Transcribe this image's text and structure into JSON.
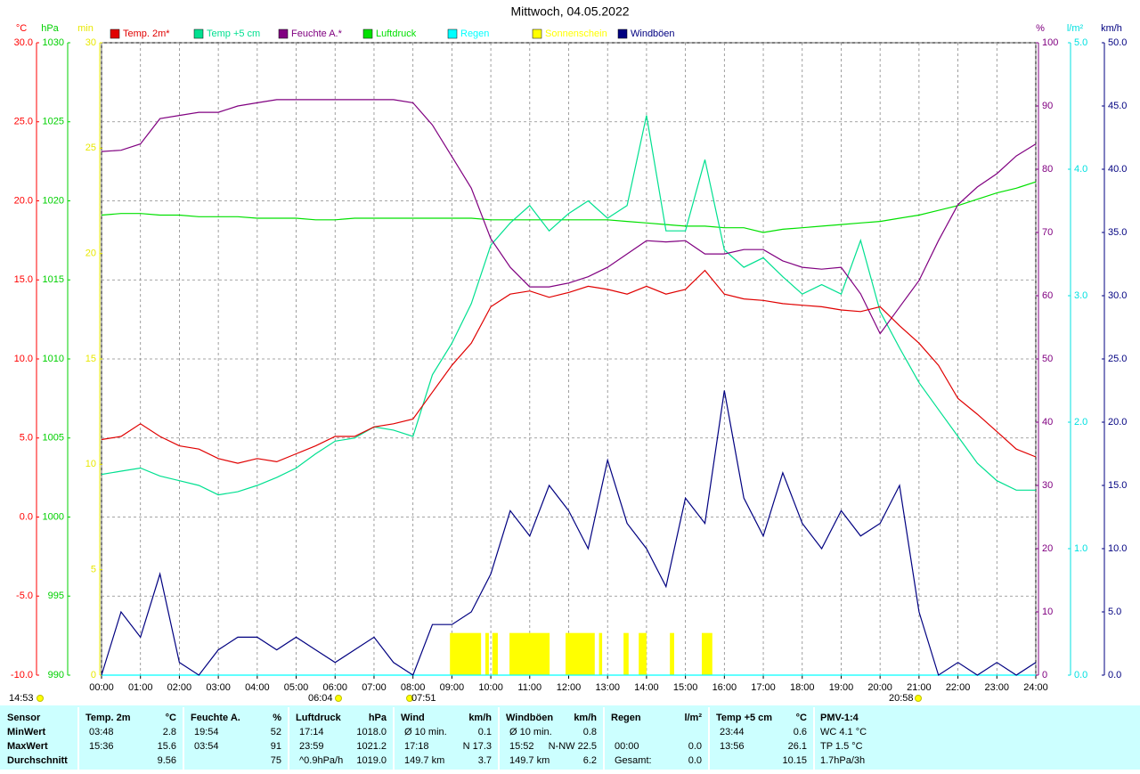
{
  "chart_data": {
    "type": "line",
    "title": "Mittwoch, 04.05.2022",
    "axes": [
      {
        "unit": "°C",
        "color": "#ff0000",
        "lim": [
          -10,
          30
        ],
        "ticks": [
          {
            "value": 30,
            "label": "30.0"
          },
          {
            "value": 25,
            "label": "25.0"
          },
          {
            "value": 20,
            "label": "20.0"
          },
          {
            "value": 15,
            "label": "15.0"
          },
          {
            "value": 10,
            "label": "10.0"
          },
          {
            "value": 5,
            "label": "5.0"
          },
          {
            "value": 0,
            "label": "0.0"
          },
          {
            "value": -5,
            "label": "-5.0"
          },
          {
            "value": -10,
            "label": "-10.0"
          }
        ]
      },
      {
        "unit": "hPa",
        "color": "#00d000",
        "lim": [
          990,
          1030
        ],
        "ticks": [
          1030,
          1025,
          1020,
          1015,
          1010,
          1005,
          1000,
          995,
          990
        ]
      },
      {
        "unit": "min",
        "color": "#e8e800",
        "lim": [
          0,
          30
        ],
        "ticks": [
          30,
          25,
          20,
          15,
          10,
          5,
          0
        ]
      },
      {
        "unit": "%",
        "color": "#800080",
        "lim": [
          0,
          100
        ],
        "ticks": [
          100,
          90,
          80,
          70,
          60,
          50,
          40,
          30,
          20,
          10,
          0
        ]
      },
      {
        "unit": "l/m²",
        "color": "#00e0e0",
        "lim": [
          0,
          5
        ],
        "ticks": [
          {
            "value": 5,
            "label": "5.0"
          },
          {
            "value": 4,
            "label": "4.0"
          },
          {
            "value": 3,
            "label": "3.0"
          },
          {
            "value": 2,
            "label": "2.0"
          },
          {
            "value": 1,
            "label": "1.0"
          },
          {
            "value": 0,
            "label": "0.0"
          }
        ]
      },
      {
        "unit": "km/h",
        "color": "#000080",
        "lim": [
          0,
          50
        ],
        "ticks": [
          {
            "value": 50,
            "label": "50.0"
          },
          {
            "value": 45,
            "label": "45.0"
          },
          {
            "value": 40,
            "label": "40.0"
          },
          {
            "value": 35,
            "label": "35.0"
          },
          {
            "value": 30,
            "label": "30.0"
          },
          {
            "value": 25,
            "label": "25.0"
          },
          {
            "value": 20,
            "label": "20.0"
          },
          {
            "value": 15,
            "label": "15.0"
          },
          {
            "value": 10,
            "label": "10.0"
          },
          {
            "value": 5,
            "label": "5.0"
          },
          {
            "value": 0,
            "label": "0.0"
          }
        ]
      }
    ],
    "xlim": [
      0,
      24
    ],
    "xticks": [
      {
        "value": 0,
        "label": "00:00"
      },
      {
        "value": 1,
        "label": "01:00"
      },
      {
        "value": 2,
        "label": "02:00"
      },
      {
        "value": 3,
        "label": "03:00"
      },
      {
        "value": 4,
        "label": "04:00"
      },
      {
        "value": 5,
        "label": "05:00"
      },
      {
        "value": 6,
        "label": "06:00"
      },
      {
        "value": 7,
        "label": "07:00"
      },
      {
        "value": 8,
        "label": "08:00"
      },
      {
        "value": 9,
        "label": "09:00"
      },
      {
        "value": 10,
        "label": "10:00"
      },
      {
        "value": 11,
        "label": "11:00"
      },
      {
        "value": 12,
        "label": "12:00"
      },
      {
        "value": 13,
        "label": "13:00"
      },
      {
        "value": 14,
        "label": "14:00"
      },
      {
        "value": 15,
        "label": "15:00"
      },
      {
        "value": 16,
        "label": "16:00"
      },
      {
        "value": 17,
        "label": "17:00"
      },
      {
        "value": 18,
        "label": "18:00"
      },
      {
        "value": 19,
        "label": "19:00"
      },
      {
        "value": 20,
        "label": "20:00"
      },
      {
        "value": 21,
        "label": "21:00"
      },
      {
        "value": 22,
        "label": "22:00"
      },
      {
        "value": 23,
        "label": "23:00"
      },
      {
        "value": 24,
        "label": "24:00"
      }
    ],
    "grid": true,
    "x": [
      0,
      0.5,
      1,
      1.5,
      2,
      2.5,
      3,
      3.5,
      4,
      4.5,
      5,
      5.5,
      6,
      6.5,
      7,
      7.5,
      8,
      8.5,
      9,
      9.5,
      10,
      10.5,
      11,
      11.5,
      12,
      12.5,
      13,
      13.5,
      14,
      14.5,
      15,
      15.5,
      16,
      16.5,
      17,
      17.5,
      18,
      18.5,
      19,
      19.5,
      20,
      20.5,
      21,
      21.5,
      22,
      22.5,
      23,
      23.5,
      24
    ],
    "series": [
      {
        "name": "Temp. 2m*",
        "color": "#e00000",
        "axis": 0,
        "values": [
          4.9,
          5.1,
          5.9,
          5.1,
          4.5,
          4.3,
          3.7,
          3.4,
          3.7,
          3.5,
          4.0,
          4.5,
          5.1,
          5.1,
          5.7,
          5.9,
          6.2,
          7.9,
          9.6,
          11.0,
          13.3,
          14.1,
          14.3,
          13.9,
          14.2,
          14.6,
          14.4,
          14.1,
          14.6,
          14.1,
          14.4,
          15.6,
          14.1,
          13.8,
          13.7,
          13.5,
          13.4,
          13.3,
          13.1,
          13.0,
          13.3,
          12.1,
          11.0,
          9.6,
          7.5,
          6.5,
          5.4,
          4.3,
          3.8
        ]
      },
      {
        "name": "Temp +5 cm",
        "color": "#00e090",
        "axis": 0,
        "values": [
          2.7,
          2.9,
          3.1,
          2.6,
          2.3,
          2.0,
          1.4,
          1.6,
          2.0,
          2.5,
          3.1,
          4.0,
          4.8,
          5.0,
          5.7,
          5.5,
          5.1,
          9.0,
          11.0,
          13.5,
          17.2,
          18.6,
          19.7,
          18.1,
          19.2,
          20.0,
          18.9,
          19.7,
          25.4,
          18.1,
          18.1,
          22.6,
          16.9,
          15.8,
          16.4,
          15.2,
          14.1,
          14.7,
          14.1,
          17.5,
          13.0,
          10.7,
          8.5,
          6.8,
          5.1,
          3.4,
          2.3,
          1.7,
          1.7
        ]
      },
      {
        "name": "Feuchte A.*",
        "color": "#800080",
        "axis": 3,
        "values": [
          82.8,
          83,
          84,
          88,
          88.5,
          89,
          89,
          90,
          90.5,
          91,
          91,
          91,
          91,
          91,
          91,
          91,
          90.5,
          87,
          82,
          77,
          69,
          64.5,
          61.4,
          61.4,
          62,
          63,
          64.5,
          66.6,
          68.7,
          68.5,
          68.7,
          66.6,
          66.6,
          67.3,
          67.3,
          65.5,
          64.5,
          64.2,
          64.5,
          60.3,
          54,
          58.2,
          62.4,
          68.7,
          74.4,
          77.2,
          79.3,
          82.1,
          84
        ]
      },
      {
        "name": "Luftdruck",
        "color": "#00e000",
        "axis": 1,
        "values": [
          1019.1,
          1019.2,
          1019.2,
          1019.1,
          1019.1,
          1019.0,
          1019.0,
          1019.0,
          1018.9,
          1018.9,
          1018.9,
          1018.8,
          1018.8,
          1018.9,
          1018.9,
          1018.9,
          1018.9,
          1018.9,
          1018.9,
          1018.9,
          1018.8,
          1018.8,
          1018.8,
          1018.8,
          1018.8,
          1018.8,
          1018.8,
          1018.7,
          1018.6,
          1018.5,
          1018.4,
          1018.4,
          1018.3,
          1018.3,
          1018.0,
          1018.2,
          1018.3,
          1018.4,
          1018.5,
          1018.6,
          1018.7,
          1018.9,
          1019.1,
          1019.4,
          1019.7,
          1020.1,
          1020.5,
          1020.8,
          1021.2
        ]
      },
      {
        "name": "Regen",
        "color": "#00ffff",
        "axis": 4,
        "x": [
          0,
          24
        ],
        "values": [
          0,
          0
        ]
      },
      {
        "name": "Sonnenschein",
        "color": "#ffff00",
        "axis": 2,
        "x": [
          8.95,
          9.86,
          10.04,
          10.48,
          11.92,
          12.78,
          13.41,
          13.8,
          14.6,
          15.42
        ],
        "x_end": [
          9.75,
          9.95,
          10.18,
          11.51,
          12.67,
          12.86,
          13.54,
          14.0,
          14.71,
          15.69
        ],
        "values": [
          2,
          2,
          2,
          2,
          2,
          2,
          2,
          2,
          2,
          2
        ]
      },
      {
        "name": "Windböen",
        "color": "#000080",
        "axis": 5,
        "values": [
          0,
          5,
          3,
          8,
          1,
          0,
          2,
          3,
          3,
          2,
          3,
          2,
          1,
          2,
          3,
          1,
          0,
          4,
          4,
          5,
          8,
          13,
          11,
          15,
          13,
          10,
          17,
          12,
          10,
          7,
          14,
          12,
          22.5,
          14,
          11,
          16,
          12,
          10,
          13,
          11,
          12,
          15,
          5,
          0,
          1,
          0,
          1,
          0,
          1
        ]
      }
    ],
    "annotations": [
      "14:53",
      "06:04",
      "07:51",
      "20:58"
    ]
  },
  "table": {
    "header": [
      "Sensor",
      "Temp. 2m",
      "°C",
      "Feuchte A.",
      "%",
      "Luftdruck",
      "hPa",
      "Wind",
      "km/h",
      "Windböen",
      "km/h",
      "Regen",
      "l/m²",
      "Temp +5 cm",
      "°C",
      "PMV-1:4"
    ],
    "rows": [
      [
        "MinWert",
        "03:48",
        "2.8",
        "19:54",
        "52",
        "17:14",
        "1018.0",
        "Ø 10 min.",
        "0.1",
        "Ø 10 min.",
        "0.8",
        null,
        null,
        "23:44",
        "0.6",
        "WC 4.1 °C"
      ],
      [
        "MaxWert",
        "15:36",
        "15.6",
        "03:54",
        "91",
        "23:59",
        "1021.2",
        "17:18",
        "N 17.3",
        "15:52",
        "N-NW 22.5",
        "00:00",
        "0.0",
        "13:56",
        "26.1",
        "TP 1.5 °C"
      ],
      [
        "Durchschnitt",
        null,
        "9.56",
        null,
        "75",
        "^0.9hPa/h",
        "1019.0",
        "149.7 km",
        "3.7",
        "149.7 km",
        "6.2",
        "Gesamt:",
        "0.0",
        null,
        "10.15",
        "1.7hPa/3h"
      ]
    ]
  }
}
